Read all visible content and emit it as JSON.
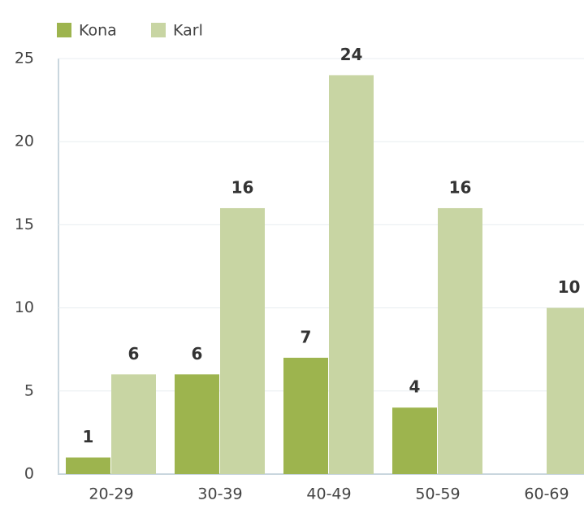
{
  "chart_data": {
    "type": "bar",
    "categories": [
      "20-29",
      "30-39",
      "40-49",
      "50-59",
      "60-69"
    ],
    "series": [
      {
        "name": "Kona",
        "color": "#9db44e",
        "values": [
          1,
          6,
          7,
          4,
          null
        ]
      },
      {
        "name": "Karl",
        "color": "#c8d5a3",
        "values": [
          6,
          16,
          24,
          16,
          10
        ]
      }
    ],
    "ylim": [
      0,
      25
    ],
    "yticks": [
      0,
      5,
      10,
      15,
      20,
      25
    ],
    "grid": true,
    "legend": "top-left"
  }
}
